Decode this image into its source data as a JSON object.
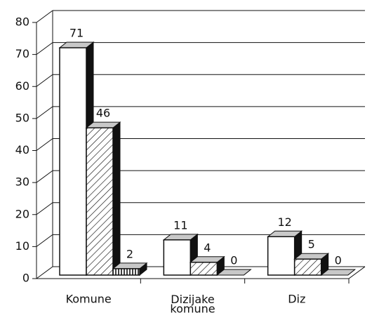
{
  "chart_data": {
    "type": "bar3d",
    "categories": [
      "Komune",
      "Dizijake komune",
      "Diz"
    ],
    "series": [
      {
        "color": "#ffffff",
        "pattern": "none",
        "values": [
          71,
          11,
          12
        ]
      },
      {
        "color": "#ffffff",
        "pattern": "diagonal",
        "values": [
          46,
          4,
          5
        ]
      },
      {
        "color": "#ffffff",
        "pattern": "vertical",
        "values": [
          2,
          0,
          0
        ]
      }
    ],
    "ylim": [
      0,
      80
    ],
    "yticks": [
      0,
      10,
      20,
      30,
      40,
      50,
      60,
      70,
      80
    ],
    "grid": true
  }
}
